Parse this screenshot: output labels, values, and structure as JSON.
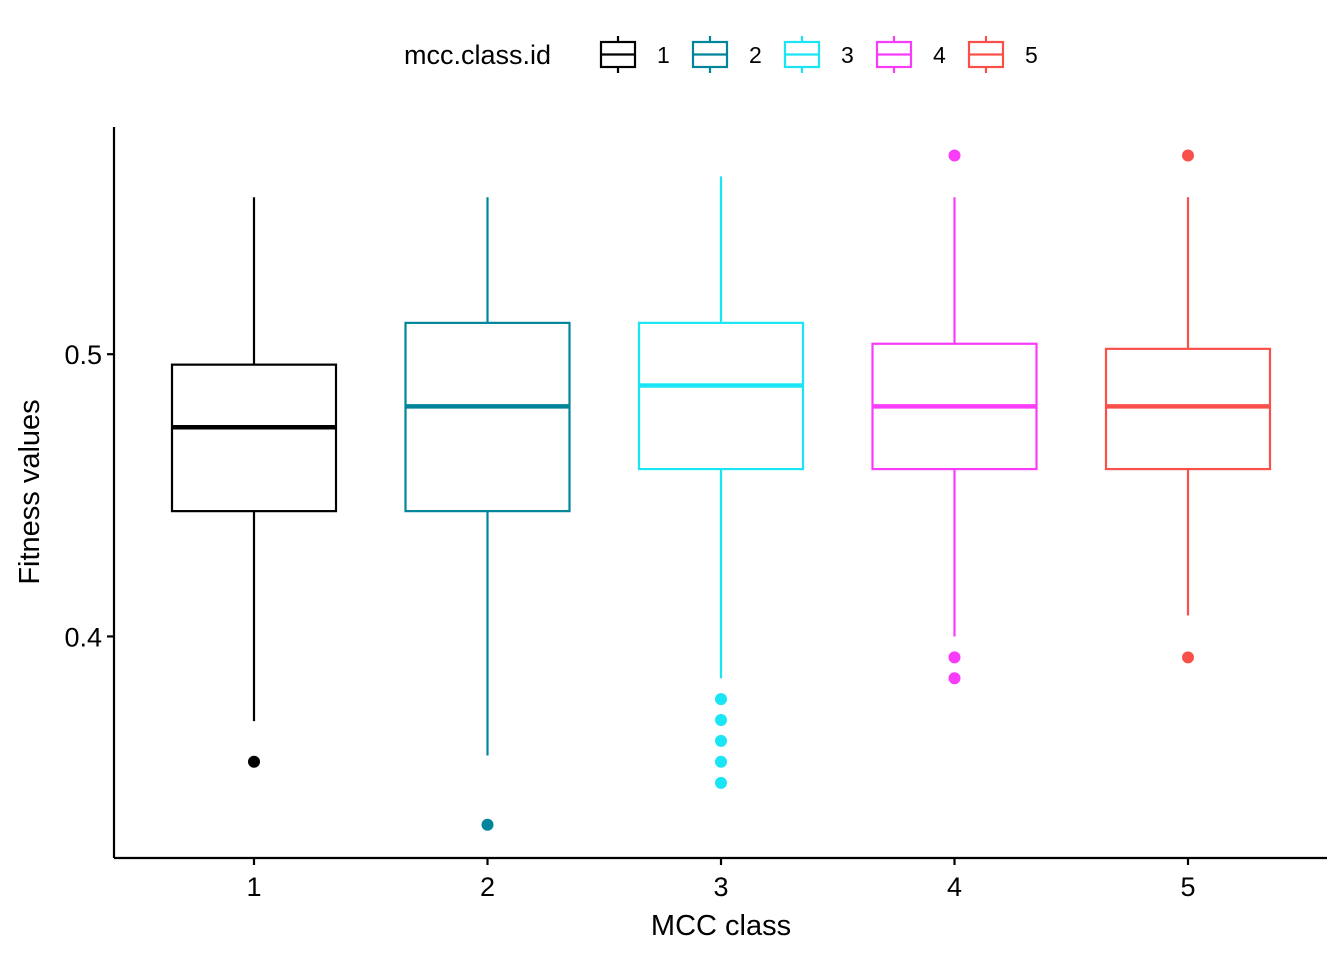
{
  "chart_data": {
    "type": "boxplot",
    "title": "",
    "xlabel": "MCC class",
    "ylabel": "Fitness values",
    "categories": [
      "1",
      "2",
      "3",
      "4",
      "5"
    ],
    "y_ticks": [
      0.4,
      0.5
    ],
    "y_tick_labels": [
      "0.4",
      "0.5"
    ],
    "ylim": [
      0.3215,
      0.5805
    ],
    "grid": false,
    "legend": {
      "title": "mcc.class.id",
      "position": "top",
      "items": [
        "1",
        "2",
        "3",
        "4",
        "5"
      ]
    },
    "series": [
      {
        "name": "1",
        "color": "#000000",
        "whisker_low": 0.37,
        "q1": 0.4444,
        "median": 0.4741,
        "q3": 0.4963,
        "whisker_high": 0.5556,
        "outliers": [
          0.3556
        ]
      },
      {
        "name": "2",
        "color": "#00859B",
        "whisker_low": 0.3578,
        "q1": 0.4444,
        "median": 0.4815,
        "q3": 0.5111,
        "whisker_high": 0.5556,
        "outliers": [
          0.3333
        ]
      },
      {
        "name": "3",
        "color": "#1AE5F5",
        "whisker_low": 0.3852,
        "q1": 0.4593,
        "median": 0.4889,
        "q3": 0.5111,
        "whisker_high": 0.563,
        "outliers": [
          0.3778,
          0.3704,
          0.363,
          0.3556,
          0.3481
        ]
      },
      {
        "name": "4",
        "color": "#F93CF9",
        "whisker_low": 0.4,
        "q1": 0.4593,
        "median": 0.4815,
        "q3": 0.5037,
        "whisker_high": 0.5556,
        "outliers": [
          0.5704,
          0.3926,
          0.3852
        ]
      },
      {
        "name": "5",
        "color": "#F9504A",
        "whisker_low": 0.4074,
        "q1": 0.4593,
        "median": 0.4815,
        "q3": 0.5019,
        "whisker_high": 0.5556,
        "outliers": [
          0.5704,
          0.3926
        ]
      }
    ]
  }
}
